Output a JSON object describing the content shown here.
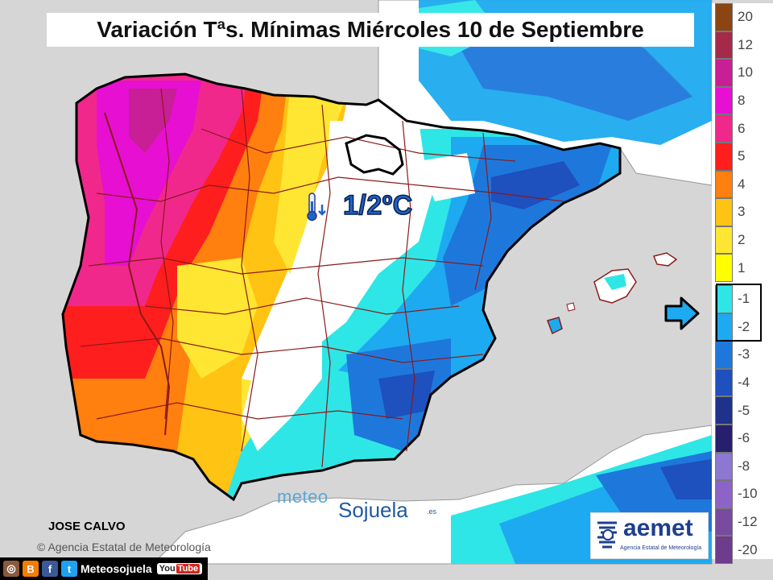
{
  "title": "Variación Tªs. Mínimas Miércoles 10 de Septiembre",
  "annotation": {
    "value": "1/2ºC",
    "icon": "thermometer-down-icon"
  },
  "legend": {
    "items": [
      {
        "label": "20",
        "color": "#8b4513"
      },
      {
        "label": "12",
        "color": "#a52a4a"
      },
      {
        "label": "10",
        "color": "#c81e96"
      },
      {
        "label": "8",
        "color": "#e60fd2"
      },
      {
        "label": "6",
        "color": "#f0288c"
      },
      {
        "label": "5",
        "color": "#ff1e1e"
      },
      {
        "label": "4",
        "color": "#ff7f0f"
      },
      {
        "label": "3",
        "color": "#ffc314"
      },
      {
        "label": "2",
        "color": "#ffe632"
      },
      {
        "label": "1",
        "color": "#ffff00"
      },
      {
        "label": "-1",
        "color": "#2ee6e6"
      },
      {
        "label": "-2",
        "color": "#1eaaf0"
      },
      {
        "label": "-3",
        "color": "#1e78dc"
      },
      {
        "label": "-4",
        "color": "#1e50be"
      },
      {
        "label": "-5",
        "color": "#1e328c"
      },
      {
        "label": "-6",
        "color": "#281e6e"
      },
      {
        "label": "-8",
        "color": "#8c78d2"
      },
      {
        "label": "-10",
        "color": "#8c64c8"
      },
      {
        "label": "-12",
        "color": "#784ba0"
      },
      {
        "label": "-20",
        "color": "#6e3c8c"
      }
    ],
    "highlight": [
      "-1",
      "-2"
    ]
  },
  "colors": {
    "sea": "#d6d6d6",
    "neutral": "#ffffff",
    "border": "#8b1a1a",
    "coast": "#000000"
  },
  "author": "JOSE CALVO",
  "agency": "Agencia Estatal de Meteorología",
  "brand": {
    "part1": "meteo",
    "part2": "Sojuela",
    "suffix": ".es"
  },
  "aemet": {
    "name": "aemet",
    "subtitle": "Agencia Estatal de Meteorología"
  },
  "social": {
    "handle": "Meteosojuela",
    "icons": [
      "instagram-icon",
      "blogger-icon",
      "facebook-icon",
      "twitter-icon",
      "youtube-icon"
    ],
    "youtube_label": "YouTube"
  }
}
